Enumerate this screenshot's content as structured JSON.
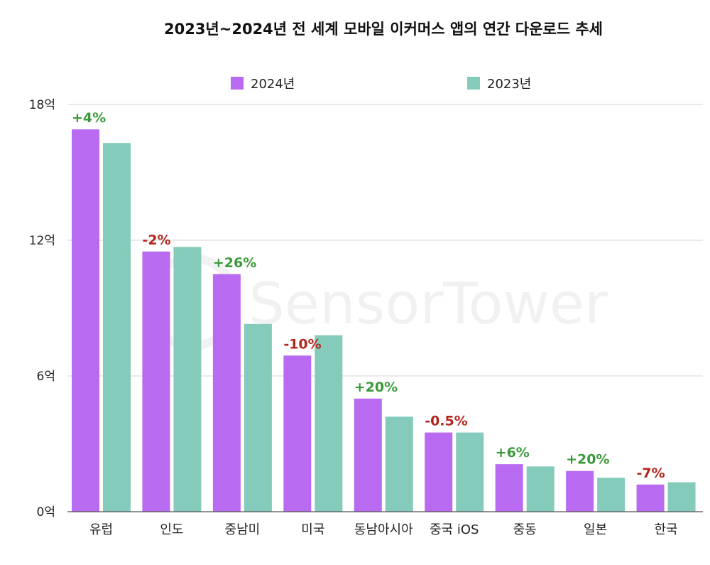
{
  "chart_data": {
    "type": "bar",
    "title": "2023년~2024년 전 세계 모바일 이커머스 앱의 연간 다운로드 추세",
    "categories": [
      "유럽",
      "인도",
      "중남미",
      "미국",
      "동남아시아",
      "중국 iOS",
      "중동",
      "일본",
      "한국"
    ],
    "series": [
      {
        "name": "2024년",
        "values": [
          16.9,
          11.5,
          10.5,
          6.9,
          5.0,
          3.5,
          2.1,
          1.8,
          1.2
        ],
        "color": "#b86af0"
      },
      {
        "name": "2023년",
        "values": [
          16.3,
          11.7,
          8.3,
          7.8,
          4.2,
          3.5,
          2.0,
          1.5,
          1.3
        ],
        "color": "#84cbbb"
      }
    ],
    "change_labels": [
      "+4%",
      "-2%",
      "+26%",
      "-10%",
      "+20%",
      "-0.5%",
      "+6%",
      "+20%",
      "-7%"
    ],
    "positive_color": "#3a9a3a",
    "negative_color": "#b3261e",
    "y_ticks": [
      0,
      6,
      12,
      18
    ],
    "y_tick_labels": [
      "0억",
      "6억",
      "12억",
      "18억"
    ],
    "ylim": [
      0,
      18
    ],
    "grid": true,
    "legend_position": "top-center",
    "watermark": "SensorTower"
  }
}
